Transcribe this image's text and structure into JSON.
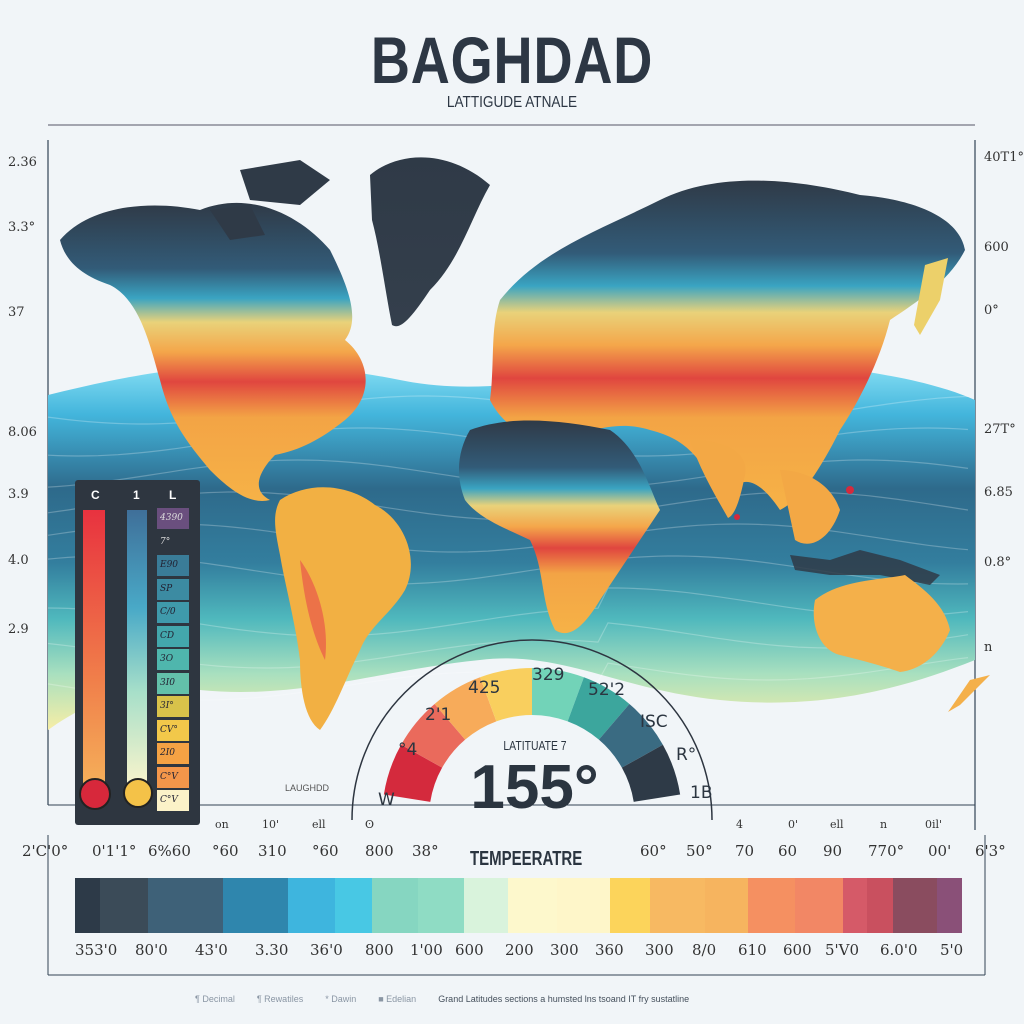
{
  "title": "BAGHDAD",
  "subtitle": "LATTIGUDE ATNALE",
  "left_axis_labels": [
    "2.36",
    "3.3°",
    "37",
    "8.06",
    "3.9",
    "4.0",
    "2.9"
  ],
  "right_axis_labels": [
    "40T1°",
    "600",
    "0°",
    "27T°",
    "6.85",
    "0.8°",
    "n"
  ],
  "map_small_label": "LAUGHDD",
  "legend": {
    "headers": [
      "C",
      "1",
      "L"
    ],
    "swatches": [
      {
        "label": "4390",
        "color": "#6a4f7e"
      },
      {
        "label": "7°",
        "color": "#2e3640"
      },
      {
        "label": "E90",
        "color": "#3a7c98"
      },
      {
        "label": "SP",
        "color": "#3c8ba2"
      },
      {
        "label": "C/0",
        "color": "#3f9aab"
      },
      {
        "label": "CD",
        "color": "#43a7ac"
      },
      {
        "label": "3O",
        "color": "#4fb6ad"
      },
      {
        "label": "3I0",
        "color": "#63c0aa"
      },
      {
        "label": "3I°",
        "color": "#d8c24a"
      },
      {
        "label": "CV°",
        "color": "#f2c84a"
      },
      {
        "label": "2I0",
        "color": "#f5a244"
      },
      {
        "label": "C°V",
        "color": "#f4964a"
      },
      {
        "label": "C°V",
        "color": "#fbf2c8"
      }
    ]
  },
  "gauge": {
    "value": "155°",
    "label": "LATITUATE 7",
    "labels": [
      "W",
      "°4",
      "2'1",
      "425",
      "329",
      "52'2",
      "ISC",
      "R°",
      "1B"
    ],
    "segments": [
      "#d42a3d",
      "#ea6a5c",
      "#f7ab5a",
      "#f9cf5e",
      "#72d3b8",
      "#3ca69d",
      "#3a6b82",
      "#2e3a47"
    ]
  },
  "temperature_scale": {
    "title": "TEMPEERATRE",
    "upper_minor_labels": [
      "on",
      "10'",
      "ell",
      "ʘ",
      "4",
      "0'",
      "ell",
      "n",
      "0il'"
    ],
    "top_labels": [
      "2'C'0°",
      "0'1'1°",
      "6%60",
      "°60",
      "310",
      "°60",
      "800",
      "38°",
      "60°",
      "50°",
      "70",
      "60",
      "90",
      "770°",
      "00'",
      "6'3°"
    ],
    "bottom_labels": [
      "353'0",
      "80'0",
      "43'0",
      "3.30",
      "36'0",
      "800",
      "1'00",
      "600",
      "200",
      "300",
      "360",
      "300",
      "8/0",
      "610",
      "600",
      "5'V0",
      "6.0'0",
      "5'0"
    ],
    "colors": [
      "#2d3a48",
      "#3b4b58",
      "#3e6178",
      "#2f86ad",
      "#3eb5de",
      "#48c8e4",
      "#86d6c1",
      "#8fdcc4",
      "#d9f3dc",
      "#fdf8cc",
      "#fef6c9",
      "#fcd45b",
      "#f7b962",
      "#f6b45f",
      "#f59061",
      "#f28765",
      "#d55a68",
      "#c9505f",
      "#8a4c5f",
      "#8a5078"
    ]
  },
  "footer": [
    "¶ Decimal",
    "¶ Rewatiles",
    "* Dawin",
    "■ Edelian",
    "Grand Latitudes sections a humsted lns tsoand IT fry sustatline"
  ]
}
